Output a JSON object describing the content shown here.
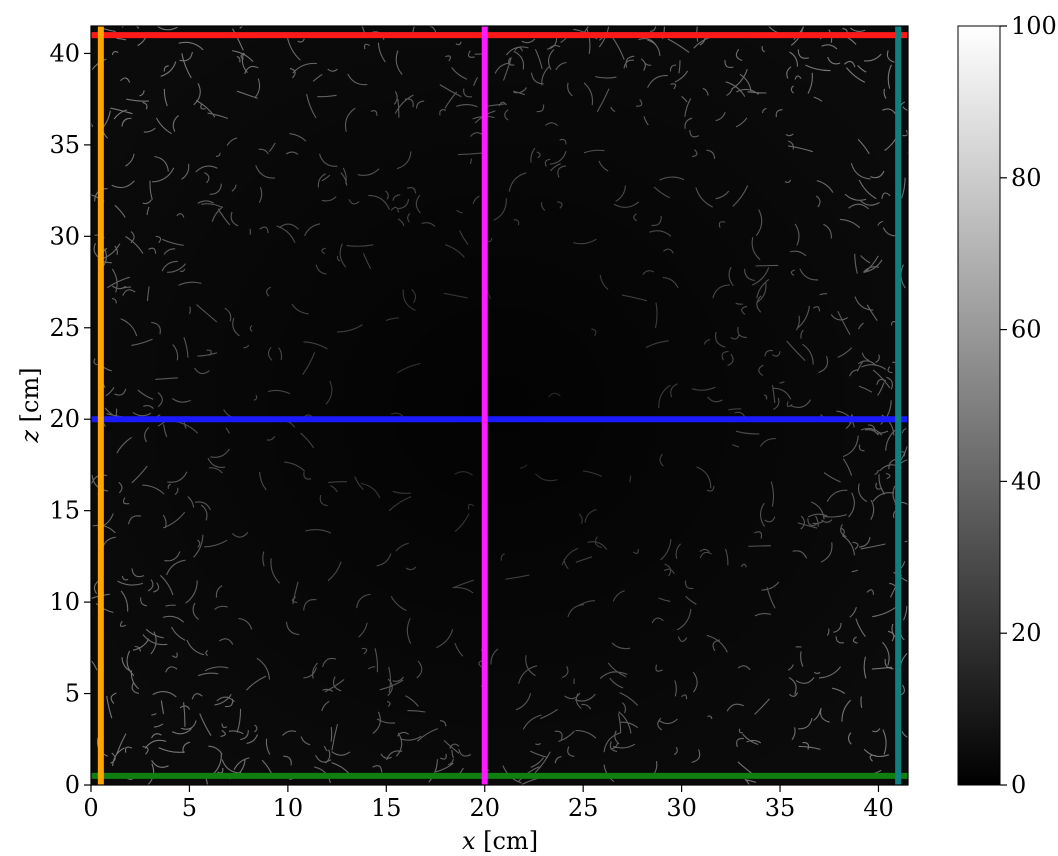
{
  "chart_data": {
    "type": "heatmap",
    "xlabel": {
      "var": "x",
      "unit": "[cm]"
    },
    "ylabel": {
      "var": "z",
      "unit": "[cm]"
    },
    "xlim": [
      0,
      41.5
    ],
    "ylim": [
      0,
      41.5
    ],
    "xticks": [
      0,
      5,
      10,
      15,
      20,
      25,
      30,
      35,
      40
    ],
    "yticks": [
      0,
      5,
      10,
      15,
      20,
      25,
      30,
      35,
      40
    ],
    "colorbar": {
      "range": [
        0,
        100
      ],
      "ticks": [
        0,
        20,
        40,
        60,
        80,
        100
      ],
      "colormap": "gray",
      "low_color": "#000000",
      "high_color": "#ffffff"
    },
    "lines": [
      {
        "orientation": "horizontal",
        "z": 41.0,
        "color": "#ff1a1a"
      },
      {
        "orientation": "horizontal",
        "z": 20.0,
        "color": "#1a1aff"
      },
      {
        "orientation": "horizontal",
        "z": 0.5,
        "color": "#0f7f0f"
      },
      {
        "orientation": "vertical",
        "x": 0.5,
        "color": "#ffa500"
      },
      {
        "orientation": "vertical",
        "x": 20.0,
        "color": "#ff1aff"
      },
      {
        "orientation": "vertical",
        "x": 41.0,
        "color": "#0f8080"
      }
    ]
  }
}
